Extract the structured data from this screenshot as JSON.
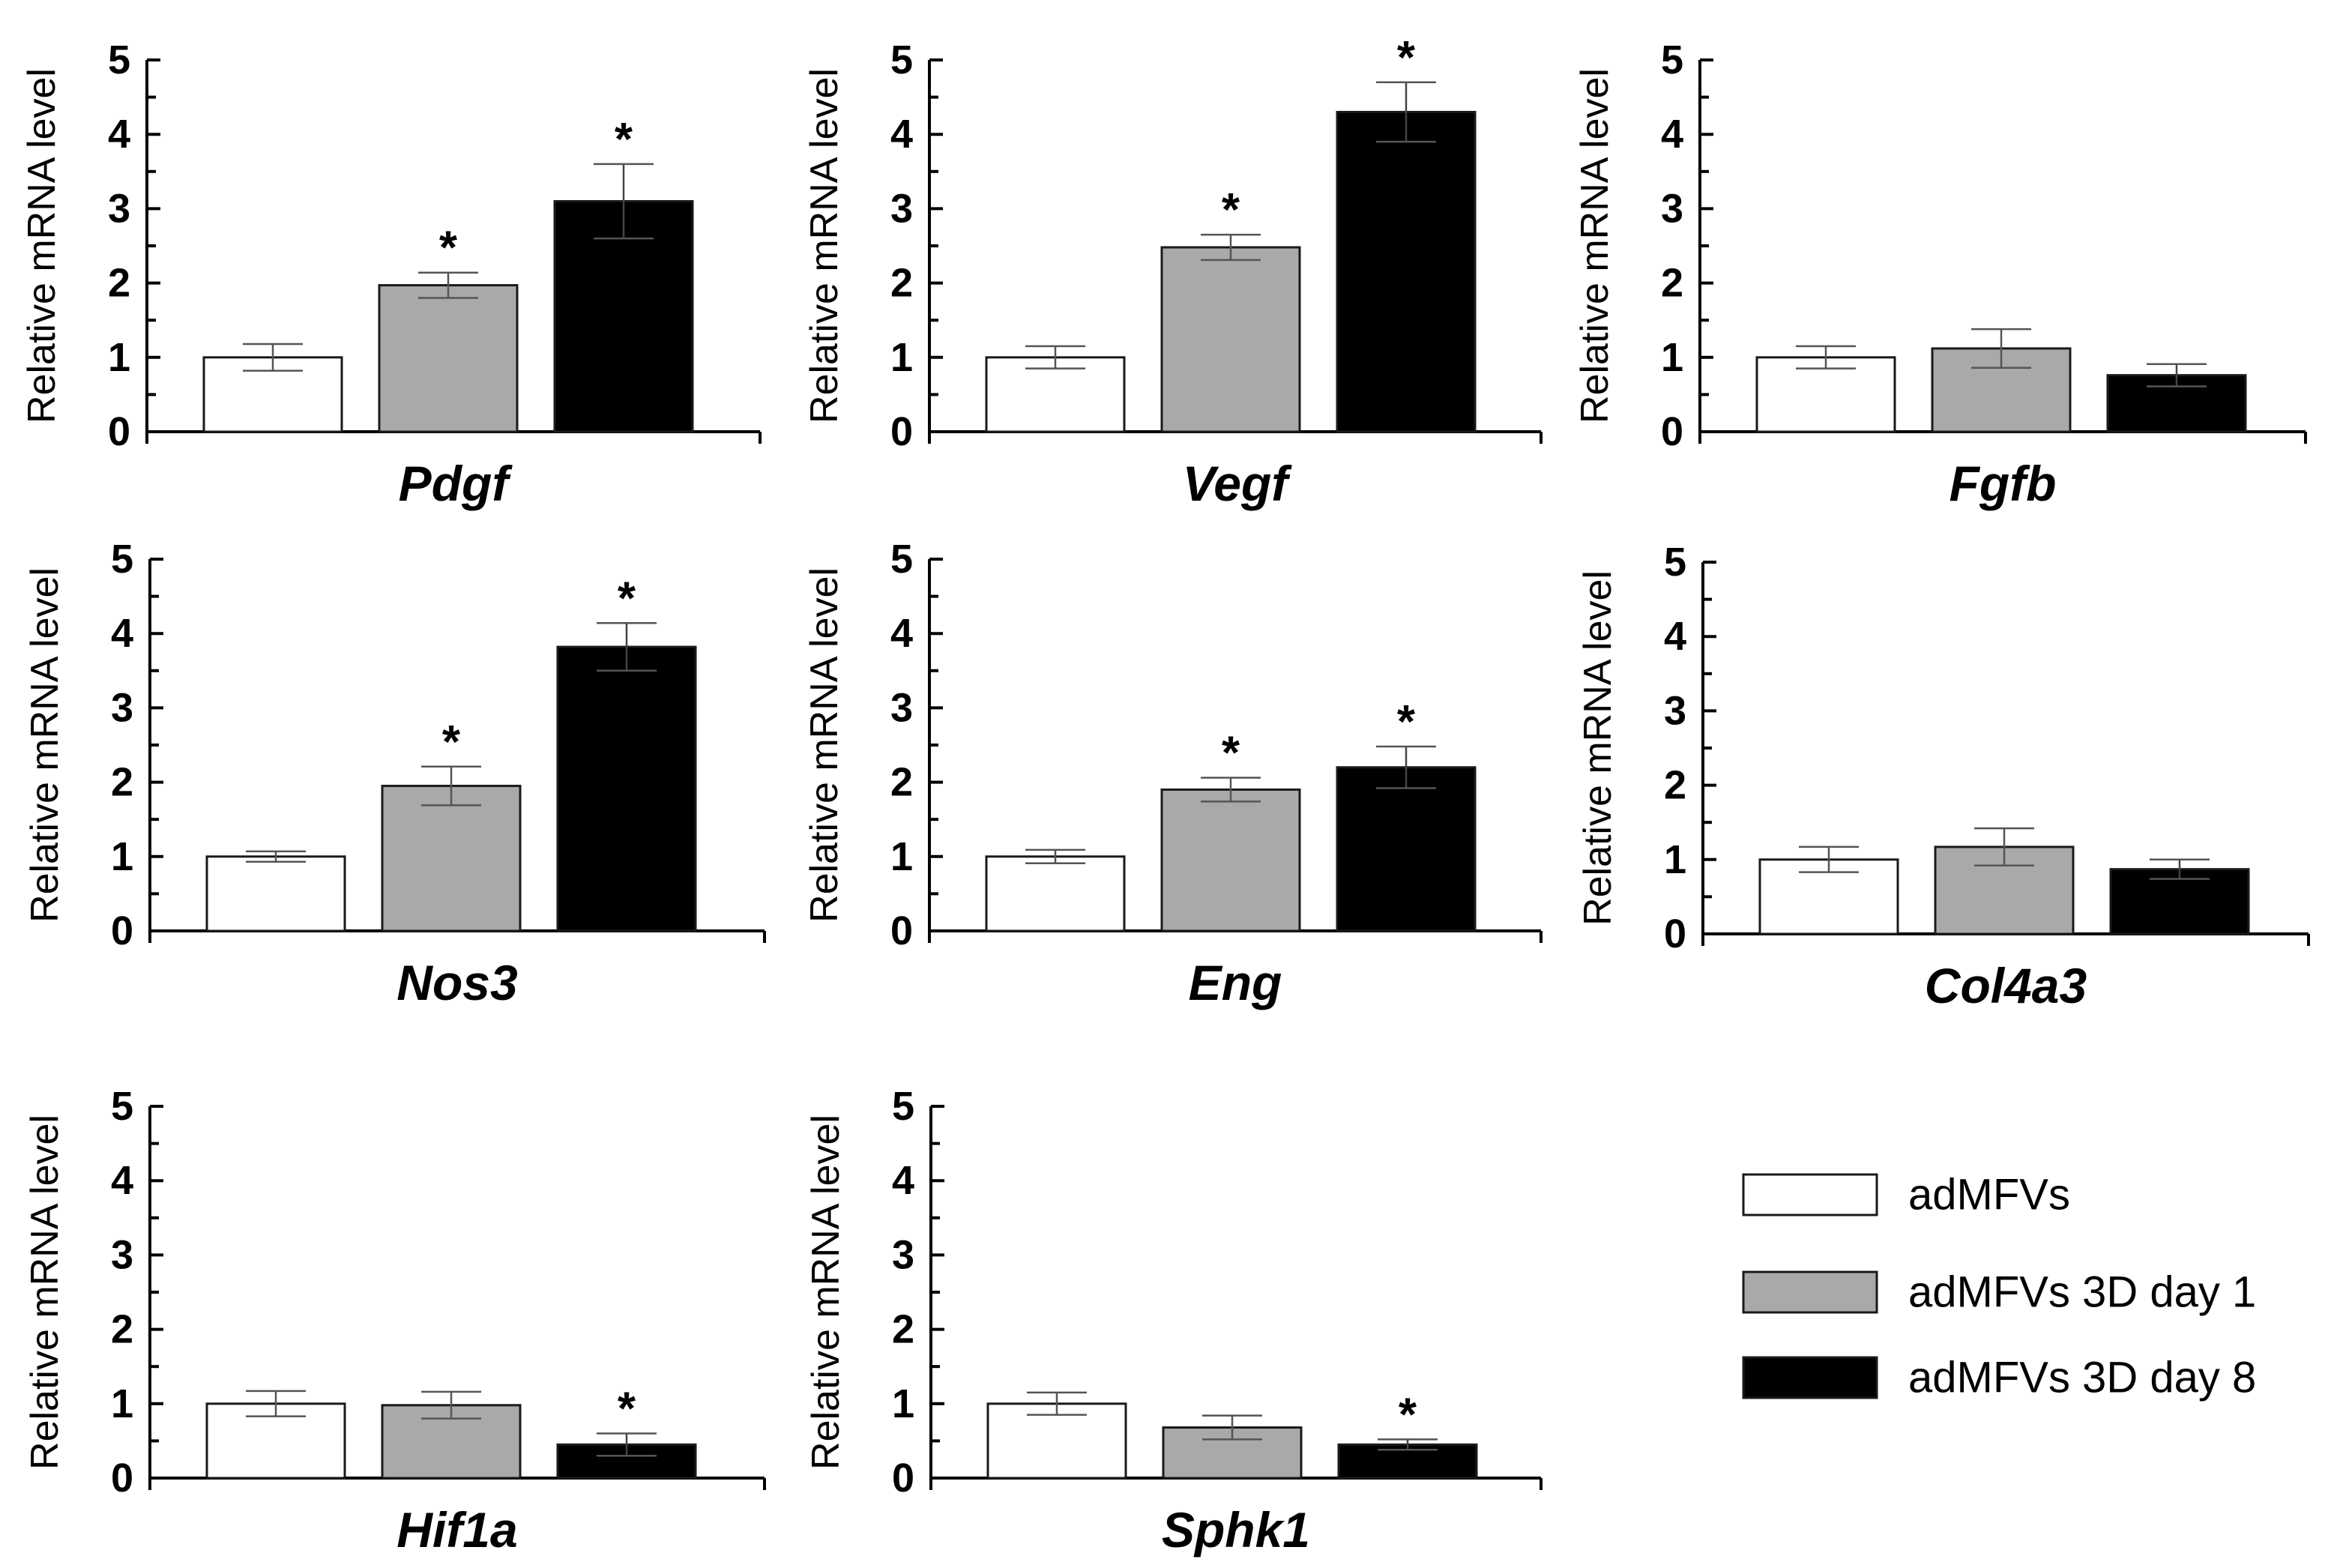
{
  "y_axis_label": "Relative mRNA level",
  "legend": {
    "items": [
      {
        "label": "adMFVs",
        "color": "#ffffff"
      },
      {
        "label": "adMFVs 3D day 1",
        "color": "#a9a9a9"
      },
      {
        "label": "adMFVs 3D day 8",
        "color": "#000000"
      }
    ]
  },
  "chart_data": [
    {
      "type": "bar",
      "title": "Pdgf",
      "ylabel": "Relative mRNA level",
      "ylim": [
        0,
        5
      ],
      "yticks": [
        "0",
        "1",
        "2",
        "3",
        "4",
        "5"
      ],
      "series": [
        {
          "name": "adMFVs",
          "value": 1.0,
          "error": 0.18,
          "significant": false
        },
        {
          "name": "adMFVs 3D day 1",
          "value": 1.97,
          "error": 0.17,
          "significant": true
        },
        {
          "name": "adMFVs 3D day 8",
          "value": 3.1,
          "error": 0.5,
          "significant": true
        }
      ]
    },
    {
      "type": "bar",
      "title": "Vegf",
      "ylabel": "Relative mRNA level",
      "ylim": [
        0,
        5
      ],
      "yticks": [
        "0",
        "1",
        "2",
        "3",
        "4",
        "5"
      ],
      "series": [
        {
          "name": "adMFVs",
          "value": 1.0,
          "error": 0.15,
          "significant": false
        },
        {
          "name": "adMFVs 3D day 1",
          "value": 2.48,
          "error": 0.17,
          "significant": true
        },
        {
          "name": "adMFVs 3D day 8",
          "value": 4.3,
          "error": 0.4,
          "significant": true
        }
      ]
    },
    {
      "type": "bar",
      "title": "Fgfb",
      "ylabel": "Relative mRNA level",
      "ylim": [
        0,
        5
      ],
      "yticks": [
        "0",
        "1",
        "2",
        "3",
        "4",
        "5"
      ],
      "series": [
        {
          "name": "adMFVs",
          "value": 1.0,
          "error": 0.15,
          "significant": false
        },
        {
          "name": "adMFVs 3D day 1",
          "value": 1.12,
          "error": 0.26,
          "significant": false
        },
        {
          "name": "adMFVs 3D day 8",
          "value": 0.76,
          "error": 0.15,
          "significant": false
        }
      ]
    },
    {
      "type": "bar",
      "title": "Nos3",
      "ylabel": "Relative mRNA level",
      "ylim": [
        0,
        5
      ],
      "yticks": [
        "0",
        "1",
        "2",
        "3",
        "4",
        "5"
      ],
      "series": [
        {
          "name": "adMFVs",
          "value": 1.0,
          "error": 0.07,
          "significant": false
        },
        {
          "name": "adMFVs 3D day 1",
          "value": 1.95,
          "error": 0.26,
          "significant": true
        },
        {
          "name": "adMFVs 3D day 8",
          "value": 3.82,
          "error": 0.32,
          "significant": true
        }
      ]
    },
    {
      "type": "bar",
      "title": "Eng",
      "ylabel": "Relative mRNA level",
      "ylim": [
        0,
        5
      ],
      "yticks": [
        "0",
        "1",
        "2",
        "3",
        "4",
        "5"
      ],
      "series": [
        {
          "name": "adMFVs",
          "value": 1.0,
          "error": 0.09,
          "significant": false
        },
        {
          "name": "adMFVs 3D day 1",
          "value": 1.9,
          "error": 0.16,
          "significant": true
        },
        {
          "name": "adMFVs 3D day 8",
          "value": 2.2,
          "error": 0.28,
          "significant": true
        }
      ]
    },
    {
      "type": "bar",
      "title": "Col4a3",
      "ylabel": "Relative mRNA level",
      "ylim": [
        0,
        5
      ],
      "yticks": [
        "0",
        "1",
        "2",
        "3",
        "4",
        "5"
      ],
      "series": [
        {
          "name": "adMFVs",
          "value": 1.0,
          "error": 0.17,
          "significant": false
        },
        {
          "name": "adMFVs 3D day 1",
          "value": 1.17,
          "error": 0.25,
          "significant": false
        },
        {
          "name": "adMFVs 3D day 8",
          "value": 0.87,
          "error": 0.13,
          "significant": false
        }
      ]
    },
    {
      "type": "bar",
      "title": "Hif1a",
      "ylabel": "Relative mRNA level",
      "ylim": [
        0,
        5
      ],
      "yticks": [
        "0",
        "1",
        "2",
        "3",
        "4",
        "5"
      ],
      "series": [
        {
          "name": "adMFVs",
          "value": 1.0,
          "error": 0.17,
          "significant": false
        },
        {
          "name": "adMFVs 3D day 1",
          "value": 0.98,
          "error": 0.18,
          "significant": false
        },
        {
          "name": "adMFVs 3D day 8",
          "value": 0.45,
          "error": 0.15,
          "significant": true
        }
      ]
    },
    {
      "type": "bar",
      "title": "Sphk1",
      "ylabel": "Relative mRNA level",
      "ylim": [
        0,
        5
      ],
      "yticks": [
        "0",
        "1",
        "2",
        "3",
        "4",
        "5"
      ],
      "series": [
        {
          "name": "adMFVs",
          "value": 1.0,
          "error": 0.15,
          "significant": false
        },
        {
          "name": "adMFVs 3D day 1",
          "value": 0.68,
          "error": 0.16,
          "significant": false
        },
        {
          "name": "adMFVs 3D day 8",
          "value": 0.45,
          "error": 0.07,
          "significant": true
        }
      ]
    }
  ]
}
